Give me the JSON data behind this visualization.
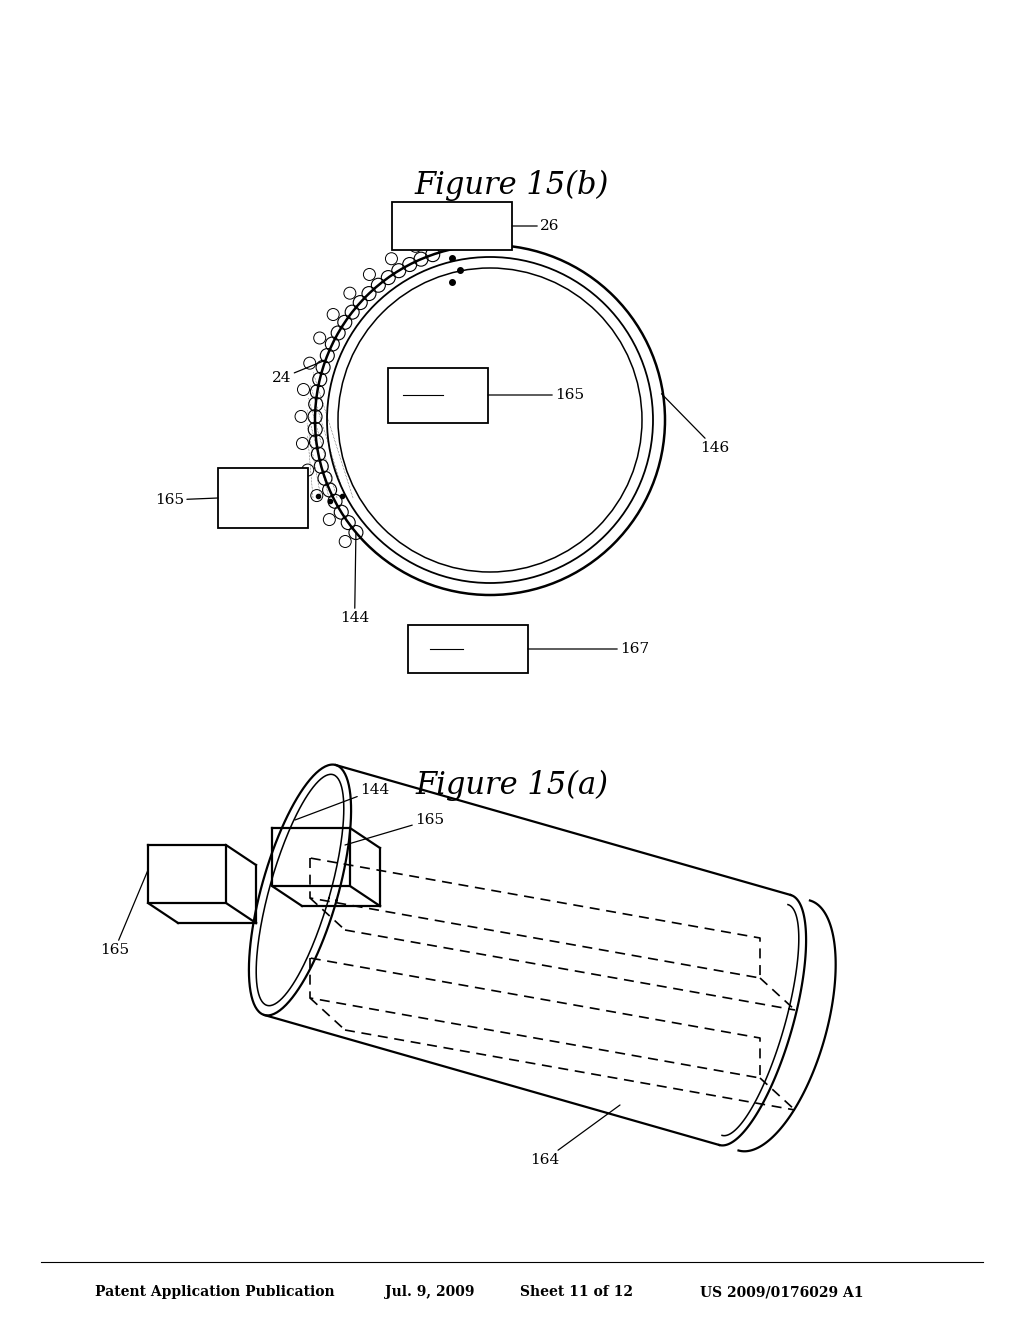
{
  "bg_color": "#ffffff",
  "header_text": "Patent Application Publication",
  "header_date": "Jul. 9, 2009",
  "header_sheet": "Sheet 11 of 12",
  "header_patent": "US 2009/0176029 A1",
  "fig_a_label": "Figure 15(a)",
  "fig_b_label": "Figure 15(b)",
  "line_color": "#000000"
}
